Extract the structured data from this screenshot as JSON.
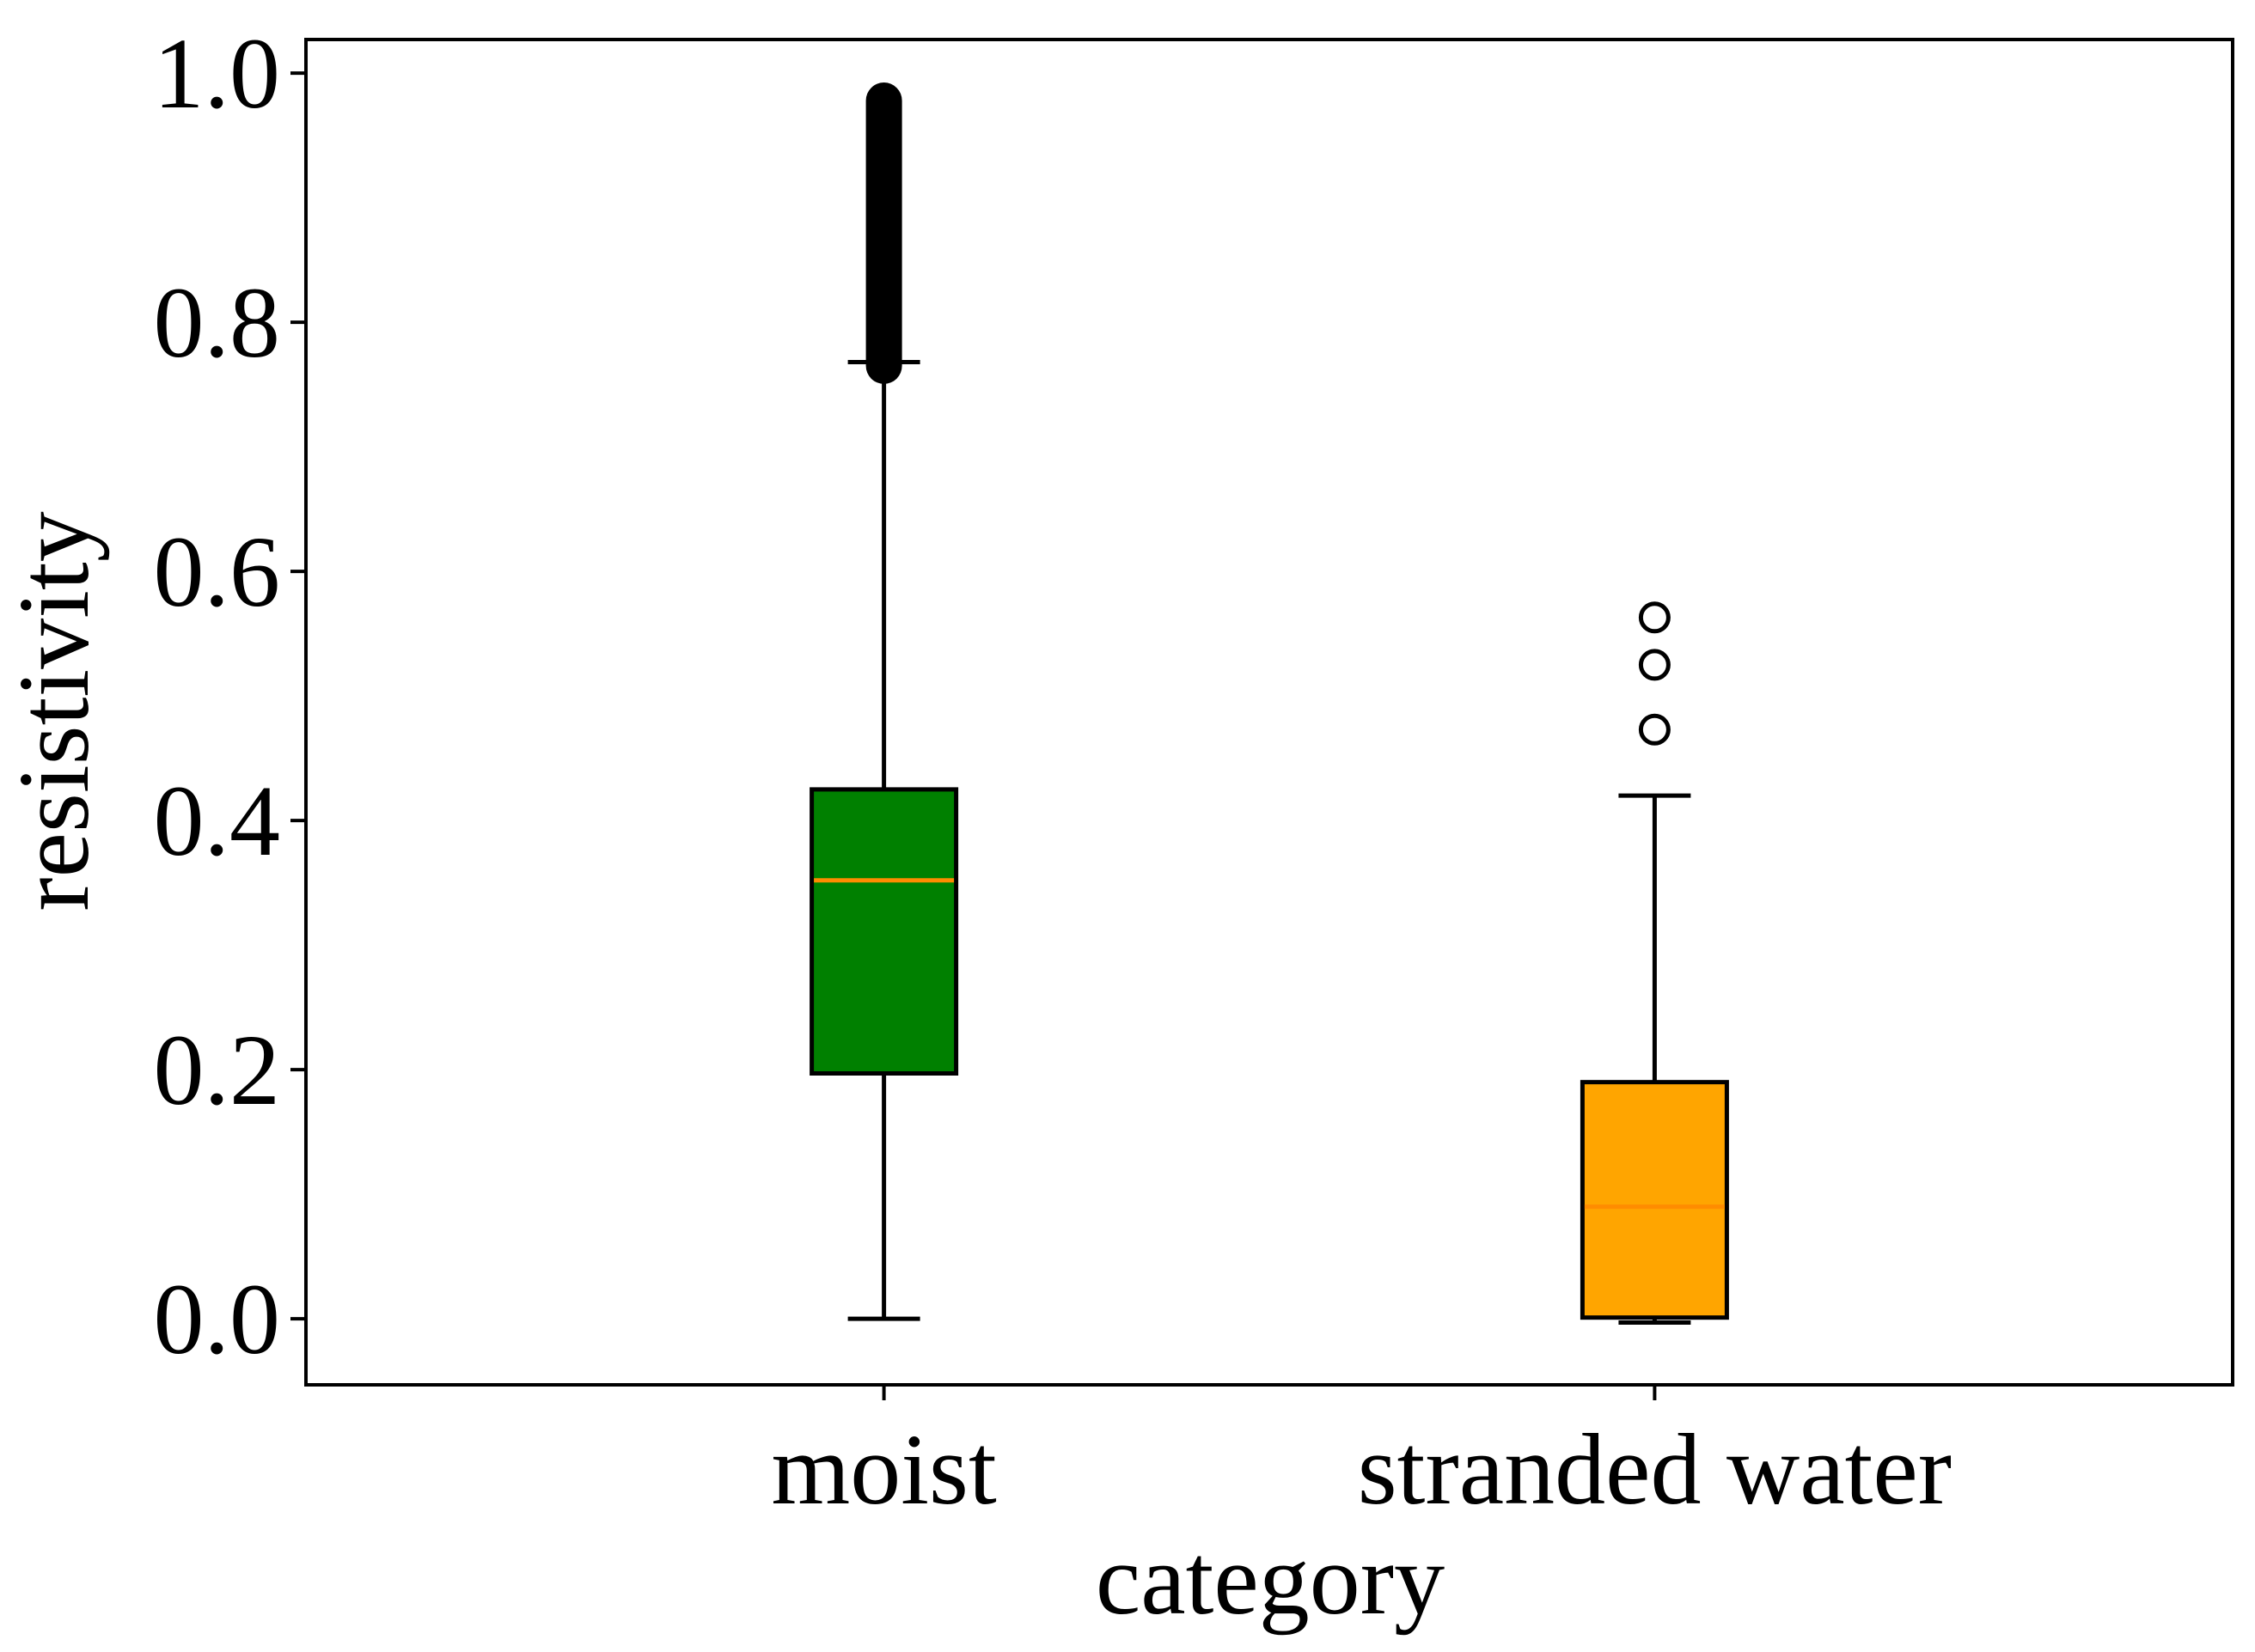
{
  "chart_data": {
    "type": "box",
    "title": "",
    "xlabel": "category",
    "ylabel": "resistivity",
    "ylim": [
      -0.053,
      1.027
    ],
    "yticks": [
      0.0,
      0.2,
      0.4,
      0.6,
      0.8,
      1.0
    ],
    "ytick_labels": [
      "0.0",
      "0.2",
      "0.4",
      "0.6",
      "0.8",
      "1.0"
    ],
    "grid": false,
    "categories": [
      "moist",
      "stranded water"
    ],
    "boxes": [
      {
        "name": "moist",
        "fill": "#008000",
        "median_color": "#ff8c00",
        "whisker_low": 0.0,
        "q1": 0.197,
        "median": 0.352,
        "q3": 0.425,
        "whisker_high": 0.768,
        "outlier_band": [
          0.765,
          0.978
        ]
      },
      {
        "name": "stranded water",
        "fill": "#ffa500",
        "median_color": "#ff8c00",
        "whisker_low": -0.003,
        "q1": 0.001,
        "median": 0.09,
        "q3": 0.19,
        "whisker_high": 0.42,
        "outliers": [
          0.473,
          0.525,
          0.563
        ]
      }
    ]
  }
}
